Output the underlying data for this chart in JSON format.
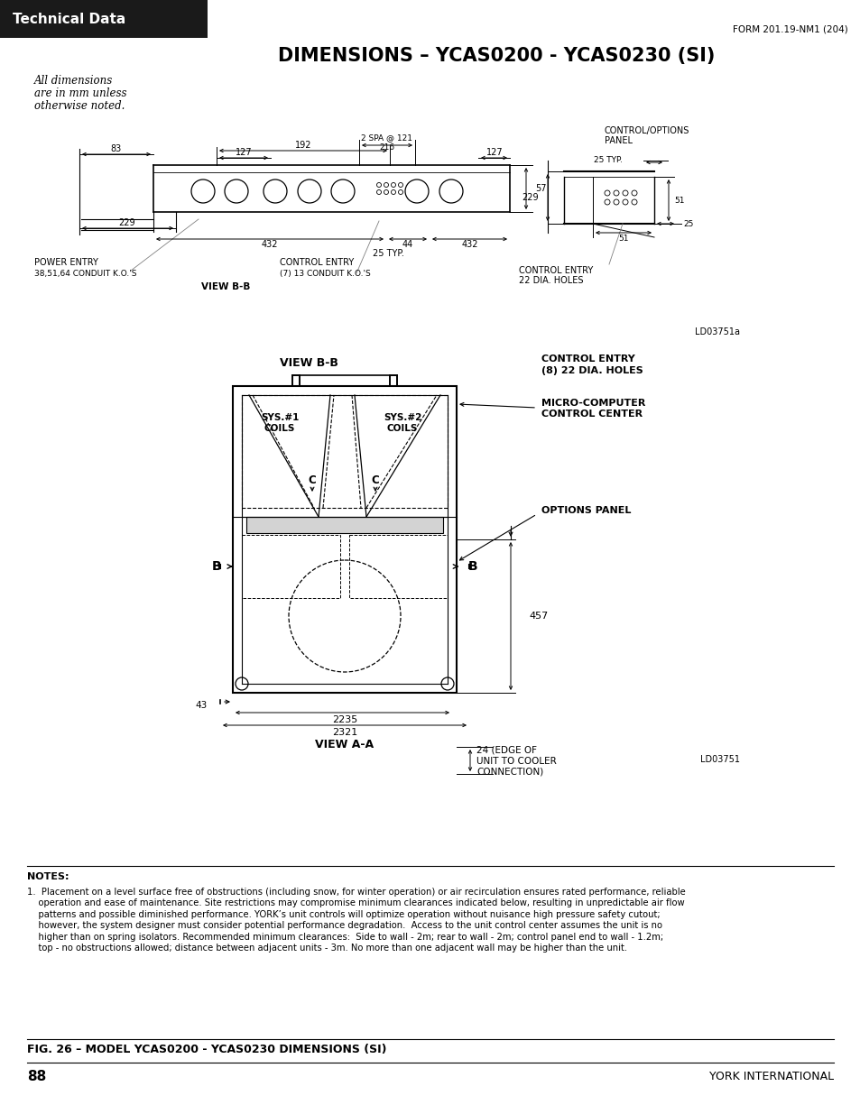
{
  "page_title": "Technical Data",
  "form_number": "FORM 201.19-NM1 (204)",
  "main_title": "DIMENSIONS – YCAS0200 - YCAS0230 (SI)",
  "subtitle_line1": "All dimensions",
  "subtitle_line2": "are in mm unless",
  "subtitle_line3": "otherwise noted.",
  "fig_caption": "FIG. 26 – MODEL YCAS0200 - YCAS0230 DIMENSIONS (SI)",
  "page_number": "88",
  "company": "YORK INTERNATIONAL",
  "ld_label_top": "LD03751a",
  "ld_label_bottom": "LD03751",
  "bg_color": "#ffffff",
  "header_bg": "#1a1a1a",
  "header_text_color": "#ffffff",
  "notes_title": "NOTES:",
  "note1_line1": "1.  Placement on a level surface free of obstructions (including snow, for winter operation) or air recirculation ensures rated performance, reliable",
  "note1_line2": "    operation and ease of maintenance. Site restrictions may compromise minimum clearances indicated below, resulting in unpredictable air flow",
  "note1_line3": "    patterns and possible diminished performance. YORK’s unit controls will optimize operation without nuisance high pressure safety cutout;",
  "note1_line4": "    however, the system designer must consider potential performance degradation.  Access to the unit control center assumes the unit is no",
  "note1_line5": "    higher than on spring isolators. Recommended minimum clearances:  Side to wall - 2m; rear to wall - 2m; control panel end to wall - 1.2m;",
  "note1_line6": "    top - no obstructions allowed; distance between adjacent units - 3m. No more than one adjacent wall may be higher than the unit."
}
